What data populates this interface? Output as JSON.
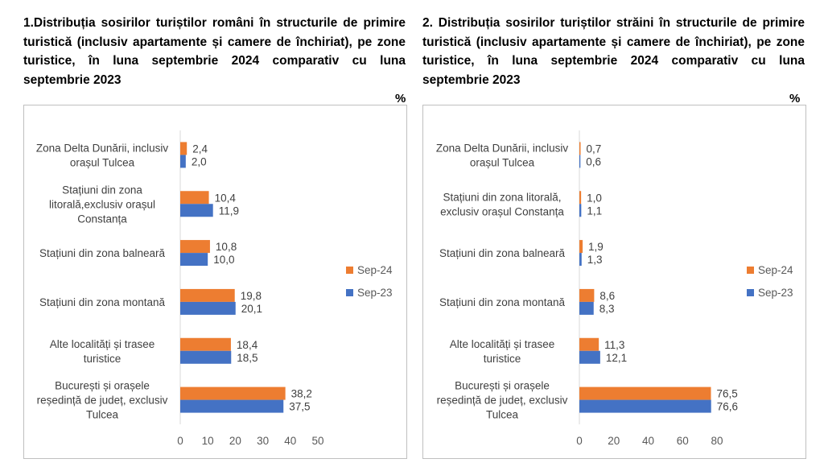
{
  "chart_data": [
    {
      "type": "bar",
      "orientation": "horizontal",
      "title": "1.Distribuția sosirilor turiștilor români în structurile de primire turistică (inclusiv apartamente și camere de închiriat), pe zone turistice, în luna septembrie 2024 comparativ cu luna septembrie 2023",
      "unit": "%",
      "categories": [
        [
          "Zona Delta Dunării, inclusiv",
          "orașul Tulcea"
        ],
        [
          "Stațiuni din zona",
          "litorală,exclusiv orașul",
          "Constanța"
        ],
        [
          "Stațiuni din zona balneară"
        ],
        [
          "Stațiuni din zona montană"
        ],
        [
          "Alte localități și trasee",
          "turistice"
        ],
        [
          "București și orașele",
          "reședință de județ, exclusiv",
          "Tulcea"
        ]
      ],
      "series": [
        {
          "name": "Sep-24",
          "color": "#ed7d31",
          "values": [
            2.4,
            10.4,
            10.8,
            19.8,
            18.4,
            38.2
          ]
        },
        {
          "name": "Sep-23",
          "color": "#4472c4",
          "values": [
            2.0,
            11.9,
            10.0,
            20.1,
            18.5,
            37.5
          ]
        }
      ],
      "xlim": [
        0,
        50
      ],
      "ticks": [
        0,
        10,
        20,
        30,
        40,
        50
      ],
      "legend": "right",
      "grid": false
    },
    {
      "type": "bar",
      "orientation": "horizontal",
      "title": "2. Distribuția sosirilor turiștilor străini în structurile de primire turistică (inclusiv apartamente și camere de închiriat), pe zone turistice, în luna septembrie 2024 comparativ cu luna septembrie 2023",
      "unit": "%",
      "categories": [
        [
          "Zona Delta Dunării, inclusiv",
          "orașul Tulcea"
        ],
        [
          "Stațiuni din zona litorală,",
          "exclusiv orașul Constanța"
        ],
        [
          "Stațiuni din zona balneară"
        ],
        [
          "Stațiuni din zona montană"
        ],
        [
          "Alte localități și trasee",
          "turistice"
        ],
        [
          "București și orașele",
          "reședință de județ, exclusiv",
          "Tulcea"
        ]
      ],
      "series": [
        {
          "name": "Sep-24",
          "color": "#ed7d31",
          "values": [
            0.7,
            1.0,
            1.9,
            8.6,
            11.3,
            76.5
          ]
        },
        {
          "name": "Sep-23",
          "color": "#4472c4",
          "values": [
            0.6,
            1.1,
            1.3,
            8.3,
            12.1,
            76.6
          ]
        }
      ],
      "xlim": [
        0,
        80
      ],
      "ticks": [
        0,
        20,
        40,
        60,
        80
      ],
      "legend": "right",
      "grid": false
    }
  ]
}
